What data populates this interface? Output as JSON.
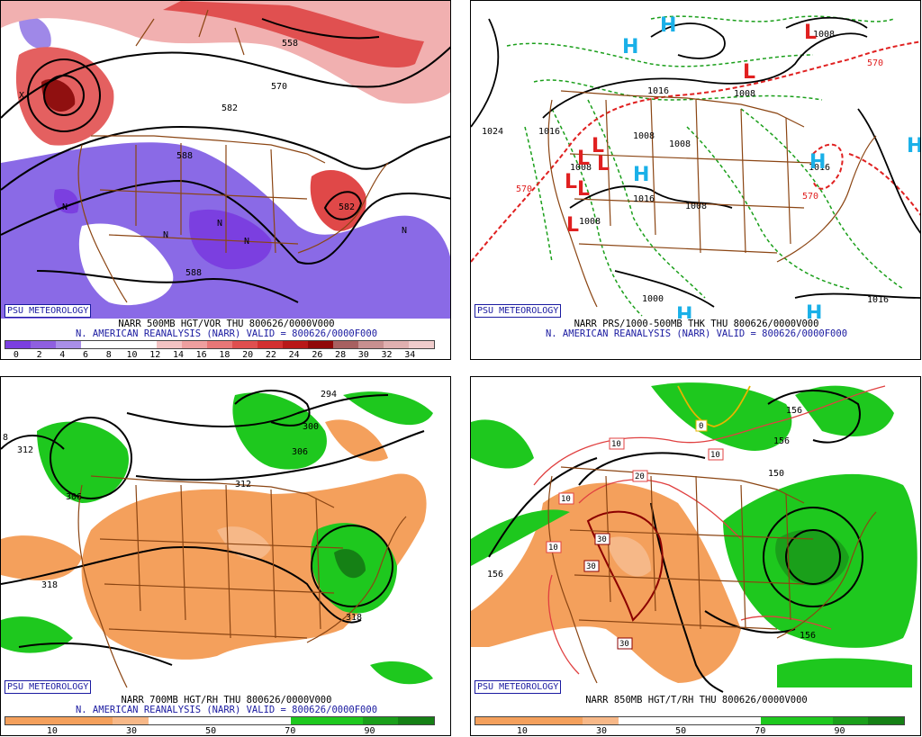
{
  "panels": [
    {
      "id": "tl",
      "logo": "PSU METEOROLOGY",
      "line1": "NARR 500MB HGT/VOR THU 800626/0000V000",
      "line2": "N. AMERICAN REANALYSIS (NARR) VALID = 800626/0000F000",
      "contour_labels": [
        "558",
        "570",
        "582",
        "588",
        "582",
        "588"
      ],
      "marks": [
        "X",
        "N",
        "N",
        "N",
        "N",
        "N"
      ],
      "colorbar": {
        "colors": [
          "#7b3fe0",
          "#8f5fe0",
          "#a98fe8",
          "#ffffff",
          "#ffffff",
          "#ffffff",
          "#f3c3c3",
          "#ee9f9f",
          "#e87777",
          "#df4f4f",
          "#d23030",
          "#b81818",
          "#900808",
          "#a86060",
          "#c89090",
          "#e0b0b0",
          "#f0cccc"
        ],
        "ticks": [
          "0",
          "2",
          "4",
          "6",
          "8",
          "10",
          "12",
          "14",
          "16",
          "18",
          "20",
          "22",
          "24",
          "26",
          "28",
          "30",
          "32",
          "34"
        ]
      }
    },
    {
      "id": "tr",
      "logo": "PSU METEOROLOGY",
      "line1": "NARR PRS/1000-500MB THK THU 800626/0000V000",
      "line2": "N. AMERICAN REANALYSIS (NARR) VALID = 800626/0000F000",
      "contour_labels": [
        "1024",
        "1016",
        "1008",
        "1008",
        "1008",
        "1016",
        "1008",
        "1008",
        "1008",
        "1016",
        "1000",
        "1016",
        "1008",
        "1016",
        "570",
        "570",
        "570"
      ],
      "highs": [
        "H",
        "H",
        "H",
        "H",
        "H",
        "H",
        "H"
      ],
      "lows": [
        "L",
        "L",
        "L",
        "L",
        "L",
        "L",
        "L",
        "L"
      ]
    },
    {
      "id": "bl",
      "logo": "PSU METEOROLOGY",
      "line1": "NARR 700MB HGT/RH THU 800626/0000V000",
      "line2": "N. AMERICAN REANALYSIS (NARR) VALID = 800626/0000F000",
      "contour_labels": [
        "294",
        "300",
        "306",
        "312",
        "312",
        "306",
        "318",
        "318",
        "8"
      ],
      "colorbar": {
        "colors": [
          "#f4a05c",
          "#f4a05c",
          "#f4a05c",
          "#f7b888",
          "#ffffff",
          "#ffffff",
          "#ffffff",
          "#ffffff",
          "#1ec81e",
          "#1ec81e",
          "#1a9f1a",
          "#158015"
        ],
        "ticks": [
          "10",
          "30",
          "50",
          "70",
          "90"
        ]
      }
    },
    {
      "id": "br",
      "logo": "PSU METEOROLOGY",
      "line1": "NARR 850MB HGT/T/RH THU 800626/0000V000",
      "line2": "",
      "contour_labels": [
        "156",
        "156",
        "150",
        "156",
        "156"
      ],
      "temp_labels": [
        "0",
        "10",
        "10",
        "10",
        "10",
        "20",
        "30",
        "30",
        "30"
      ],
      "colorbar": {
        "colors": [
          "#f4a05c",
          "#f4a05c",
          "#f4a05c",
          "#f7b888",
          "#ffffff",
          "#ffffff",
          "#ffffff",
          "#ffffff",
          "#1ec81e",
          "#1ec81e",
          "#1a9f1a",
          "#158015"
        ],
        "ticks": [
          "10",
          "30",
          "50",
          "70",
          "90"
        ]
      }
    }
  ]
}
